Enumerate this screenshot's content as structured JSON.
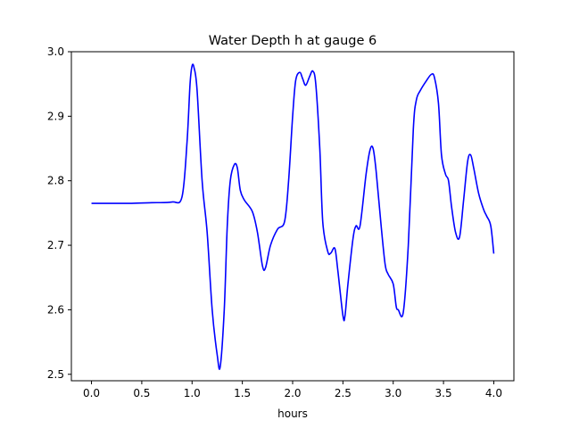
{
  "chart_data": {
    "type": "line",
    "title": "Water Depth h at gauge 6",
    "xlabel": "hours",
    "ylabel": "",
    "xlim": [
      -0.2,
      4.2
    ],
    "ylim": [
      2.49,
      3.0
    ],
    "xticks": [
      0.0,
      0.5,
      1.0,
      1.5,
      2.0,
      2.5,
      3.0,
      3.5,
      4.0
    ],
    "xtick_labels": [
      "0.0",
      "0.5",
      "1.0",
      "1.5",
      "2.0",
      "2.5",
      "3.0",
      "3.5",
      "4.0"
    ],
    "yticks": [
      2.5,
      2.6,
      2.7,
      2.8,
      2.9,
      3.0
    ],
    "ytick_labels": [
      "2.5",
      "2.6",
      "2.7",
      "2.8",
      "2.9",
      "3.0"
    ],
    "grid": false,
    "color": "#0000ff",
    "series": [
      {
        "x": [
          0.0,
          0.2,
          0.4,
          0.6,
          0.8,
          0.9,
          0.95,
          0.98,
          1.0,
          1.02,
          1.05,
          1.1,
          1.15,
          1.2,
          1.25,
          1.28,
          1.32,
          1.35,
          1.38,
          1.42,
          1.45,
          1.48,
          1.52,
          1.6,
          1.65,
          1.7,
          1.73,
          1.78,
          1.85,
          1.92,
          1.96,
          2.0,
          2.03,
          2.07,
          2.1,
          2.13,
          2.17,
          2.2,
          2.23,
          2.27,
          2.3,
          2.35,
          2.38,
          2.42,
          2.45,
          2.5,
          2.52,
          2.55,
          2.6,
          2.63,
          2.67,
          2.73,
          2.77,
          2.8,
          2.83,
          2.88,
          2.92,
          2.95,
          3.0,
          3.03,
          3.05,
          3.1,
          3.15,
          3.2,
          3.23,
          3.27,
          3.33,
          3.38,
          3.41,
          3.45,
          3.48,
          3.52,
          3.55,
          3.58,
          3.62,
          3.66,
          3.7,
          3.74,
          3.77,
          3.8,
          3.85,
          3.9,
          3.93,
          3.97,
          4.0
        ],
        "y": [
          2.765,
          2.765,
          2.765,
          2.766,
          2.767,
          2.775,
          2.86,
          2.95,
          2.978,
          2.975,
          2.94,
          2.8,
          2.72,
          2.6,
          2.53,
          2.512,
          2.6,
          2.73,
          2.8,
          2.825,
          2.82,
          2.785,
          2.77,
          2.752,
          2.72,
          2.668,
          2.665,
          2.7,
          2.725,
          2.737,
          2.8,
          2.9,
          2.955,
          2.968,
          2.958,
          2.948,
          2.962,
          2.97,
          2.95,
          2.85,
          2.735,
          2.69,
          2.688,
          2.695,
          2.66,
          2.591,
          2.59,
          2.64,
          2.71,
          2.73,
          2.73,
          2.81,
          2.848,
          2.85,
          2.815,
          2.73,
          2.67,
          2.655,
          2.64,
          2.605,
          2.6,
          2.596,
          2.7,
          2.88,
          2.925,
          2.94,
          2.955,
          2.965,
          2.96,
          2.92,
          2.84,
          2.81,
          2.8,
          2.76,
          2.72,
          2.713,
          2.77,
          2.83,
          2.84,
          2.82,
          2.78,
          2.755,
          2.745,
          2.73,
          2.687
        ]
      }
    ]
  }
}
